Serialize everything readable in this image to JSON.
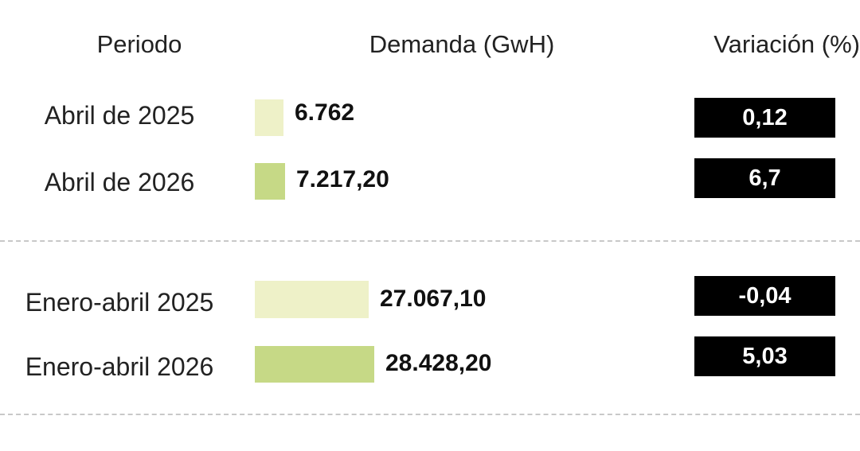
{
  "headers": {
    "periodo": "Periodo",
    "demanda": "Demanda (GwH)",
    "variacion": "Variación (%)"
  },
  "colors": {
    "bar_2025": "#eef1c8",
    "bar_2026": "#c6d986",
    "variation_box": "#000000"
  },
  "chart_data": {
    "type": "bar",
    "title": "",
    "xlabel": "",
    "ylabel": "Demanda (GwH)",
    "groups": [
      {
        "rows": [
          {
            "period": "Abril de 2025",
            "demand": 6762,
            "demand_label": "6.762",
            "variation": "0,12"
          },
          {
            "period": "Abril de 2026",
            "demand": 7217.2,
            "demand_label": "7.217,20",
            "variation": "6,7"
          }
        ]
      },
      {
        "rows": [
          {
            "period": "Enero-abril 2025",
            "demand": 27067.1,
            "demand_label": "27.067,10",
            "variation": "-0,04"
          },
          {
            "period": "Enero-abril 2026",
            "demand": 28428.2,
            "demand_label": "28.428,20",
            "variation": "5,03"
          }
        ]
      }
    ]
  }
}
